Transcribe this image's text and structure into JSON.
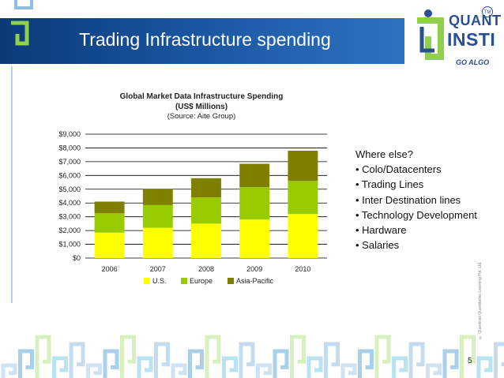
{
  "slide": {
    "title": "Trading Infrastructure spending",
    "page_number": "5",
    "copyright": "© Quantinsti Quantitative Learning Pvt. Ltd."
  },
  "logo": {
    "quant": "QUANT",
    "insti": "INSTI",
    "tagline": "GO ALGO",
    "tm": "TM"
  },
  "side_text": {
    "heading": "Where else?",
    "items": [
      "• Colo/Datacenters",
      "• Trading Lines",
      "• Inter Destination lines",
      "• Technology Development",
      "• Hardware",
      "• Salaries"
    ]
  },
  "chart_data": {
    "type": "bar",
    "stacked": true,
    "title": "Global Market Data Infrastructure Spending",
    "title_line2": "(US$ Millions)",
    "subtitle": "(Source: Aite Group)",
    "categories": [
      "2006",
      "2007",
      "2008",
      "2009",
      "2010"
    ],
    "series": [
      {
        "name": "U.S.",
        "color": "#ffff00",
        "values": [
          1850,
          2200,
          2500,
          2800,
          3200
        ]
      },
      {
        "name": "Europe",
        "color": "#99cc00",
        "values": [
          1400,
          1650,
          1900,
          2350,
          2400
        ]
      },
      {
        "name": "Asia-Pacific",
        "color": "#808000",
        "values": [
          850,
          1150,
          1400,
          1700,
          2200
        ]
      }
    ],
    "ylim": [
      0,
      9000
    ],
    "ytick_labels": [
      "$0",
      "$1,000",
      "$2,000",
      "$3,000",
      "$4,000",
      "$5,000",
      "$6,000",
      "$7,000",
      "$8,000",
      "$9,000"
    ],
    "grid": true,
    "legend_position": "bottom"
  }
}
